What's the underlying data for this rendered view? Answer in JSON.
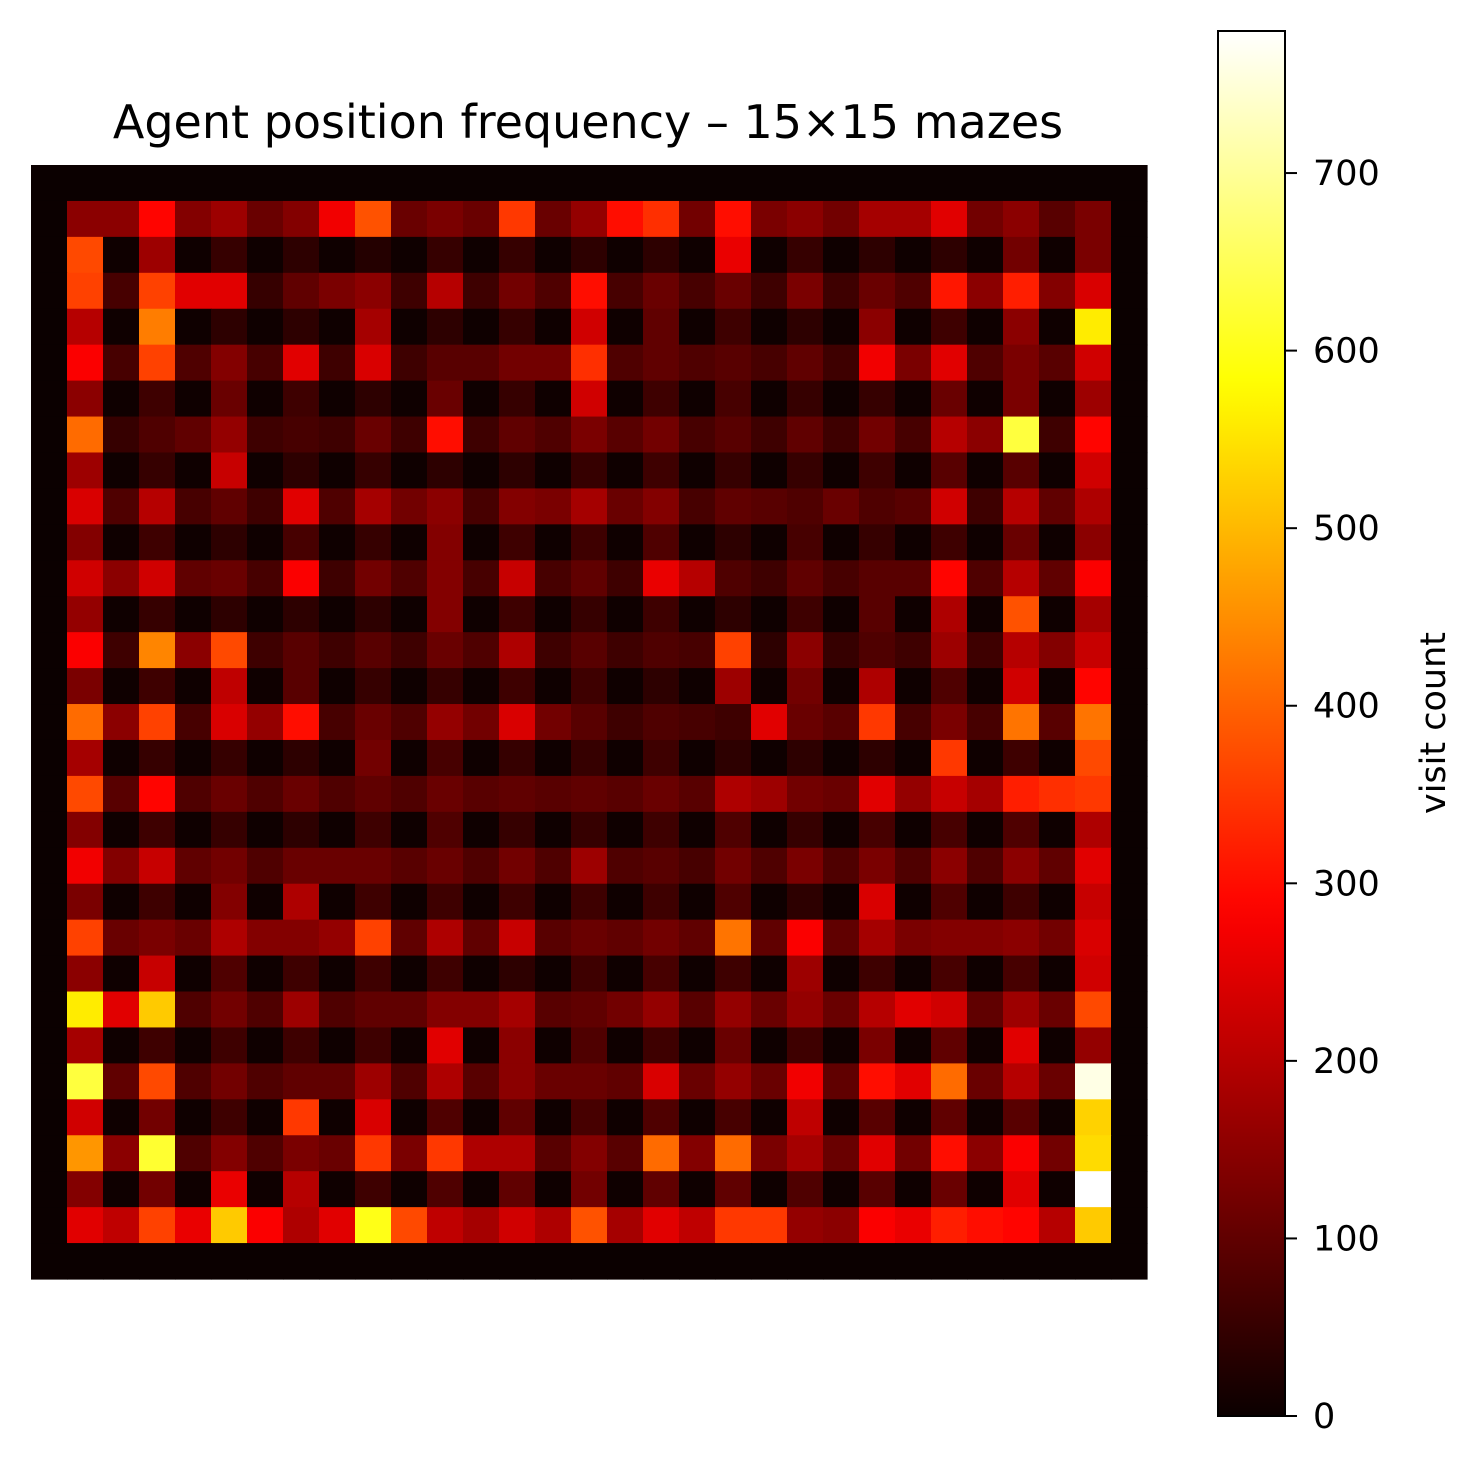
{
  "chart_data": {
    "type": "heatmap",
    "title": "Agent position frequency – 15×15 mazes",
    "colormap": "hot",
    "vmin": 0,
    "vmax": 780,
    "rows": 31,
    "cols": 31,
    "axes_visible": false,
    "colorbar": {
      "label": "visit count",
      "ticks": [
        0,
        100,
        200,
        300,
        400,
        500,
        600,
        700
      ],
      "tick_labels": [
        "0",
        "100",
        "200",
        "300",
        "400",
        "500",
        "600",
        "700"
      ]
    },
    "values": [
      [
        0,
        0,
        0,
        0,
        0,
        0,
        0,
        0,
        0,
        0,
        0,
        0,
        0,
        0,
        0,
        0,
        0,
        0,
        0,
        0,
        0,
        0,
        0,
        0,
        0,
        0,
        0,
        0,
        0,
        0,
        0
      ],
      [
        0,
        150,
        150,
        290,
        140,
        170,
        110,
        140,
        270,
        380,
        110,
        130,
        110,
        350,
        110,
        160,
        300,
        340,
        120,
        300,
        130,
        150,
        120,
        180,
        180,
        250,
        120,
        150,
        90,
        130,
        0
      ],
      [
        0,
        370,
        5,
        170,
        5,
        50,
        5,
        40,
        5,
        30,
        5,
        50,
        5,
        50,
        5,
        40,
        5,
        40,
        5,
        260,
        5,
        50,
        5,
        40,
        5,
        40,
        5,
        120,
        5,
        130,
        0
      ],
      [
        0,
        360,
        70,
        360,
        250,
        250,
        50,
        100,
        130,
        150,
        60,
        200,
        60,
        120,
        80,
        300,
        70,
        110,
        70,
        110,
        60,
        130,
        60,
        110,
        80,
        310,
        150,
        320,
        140,
        240,
        0
      ],
      [
        0,
        200,
        5,
        430,
        5,
        40,
        5,
        40,
        5,
        180,
        5,
        40,
        5,
        50,
        5,
        230,
        5,
        100,
        5,
        60,
        5,
        40,
        5,
        150,
        5,
        60,
        5,
        150,
        5,
        560,
        0
      ],
      [
        0,
        280,
        70,
        360,
        80,
        140,
        70,
        250,
        60,
        240,
        60,
        90,
        90,
        120,
        120,
        340,
        80,
        100,
        80,
        90,
        70,
        100,
        60,
        270,
        130,
        250,
        80,
        130,
        90,
        230,
        0
      ],
      [
        0,
        150,
        5,
        60,
        5,
        110,
        5,
        60,
        5,
        40,
        5,
        110,
        5,
        50,
        5,
        230,
        5,
        60,
        5,
        70,
        5,
        50,
        5,
        50,
        5,
        110,
        5,
        130,
        5,
        170,
        0
      ],
      [
        0,
        410,
        50,
        80,
        100,
        160,
        60,
        70,
        60,
        110,
        60,
        300,
        60,
        100,
        80,
        130,
        90,
        120,
        70,
        90,
        60,
        100,
        60,
        120,
        70,
        200,
        150,
        630,
        60,
        290,
        0
      ],
      [
        0,
        170,
        5,
        50,
        5,
        220,
        5,
        40,
        5,
        50,
        5,
        40,
        5,
        40,
        5,
        50,
        5,
        60,
        5,
        50,
        5,
        50,
        5,
        60,
        5,
        90,
        5,
        90,
        5,
        230,
        0
      ],
      [
        0,
        240,
        80,
        200,
        70,
        100,
        60,
        250,
        80,
        180,
        120,
        150,
        70,
        140,
        130,
        180,
        110,
        140,
        70,
        100,
        90,
        80,
        110,
        80,
        90,
        230,
        60,
        200,
        100,
        190,
        0
      ],
      [
        0,
        140,
        5,
        60,
        5,
        40,
        5,
        70,
        5,
        50,
        5,
        140,
        5,
        60,
        5,
        60,
        5,
        80,
        5,
        40,
        5,
        70,
        5,
        50,
        5,
        60,
        5,
        110,
        5,
        150,
        0
      ],
      [
        0,
        230,
        150,
        230,
        100,
        110,
        70,
        280,
        60,
        120,
        80,
        140,
        70,
        220,
        70,
        100,
        60,
        260,
        200,
        80,
        60,
        100,
        70,
        90,
        90,
        290,
        80,
        200,
        100,
        280,
        0
      ],
      [
        0,
        160,
        5,
        50,
        5,
        40,
        5,
        40,
        5,
        40,
        5,
        140,
        5,
        60,
        5,
        50,
        5,
        60,
        5,
        40,
        5,
        60,
        5,
        90,
        5,
        190,
        5,
        380,
        5,
        180,
        0
      ],
      [
        0,
        280,
        60,
        440,
        150,
        370,
        60,
        90,
        60,
        90,
        60,
        110,
        80,
        190,
        60,
        90,
        60,
        80,
        70,
        360,
        40,
        150,
        50,
        80,
        60,
        170,
        60,
        200,
        140,
        220,
        0
      ],
      [
        0,
        130,
        5,
        60,
        5,
        210,
        5,
        90,
        5,
        50,
        5,
        50,
        5,
        60,
        5,
        60,
        5,
        40,
        5,
        170,
        5,
        120,
        5,
        190,
        5,
        80,
        5,
        230,
        5,
        290,
        0
      ],
      [
        0,
        410,
        150,
        360,
        70,
        240,
        160,
        300,
        70,
        110,
        80,
        160,
        120,
        240,
        120,
        90,
        60,
        80,
        70,
        60,
        250,
        110,
        90,
        350,
        70,
        130,
        70,
        420,
        90,
        420,
        0
      ],
      [
        0,
        180,
        5,
        50,
        5,
        50,
        5,
        40,
        5,
        120,
        5,
        70,
        5,
        50,
        5,
        50,
        5,
        60,
        5,
        40,
        5,
        40,
        5,
        40,
        5,
        350,
        5,
        60,
        5,
        370,
        0
      ],
      [
        0,
        370,
        90,
        290,
        80,
        110,
        80,
        110,
        80,
        100,
        80,
        110,
        90,
        100,
        90,
        100,
        90,
        110,
        90,
        190,
        170,
        120,
        110,
        250,
        160,
        220,
        180,
        320,
        340,
        350,
        0
      ],
      [
        0,
        140,
        5,
        60,
        5,
        50,
        5,
        40,
        5,
        60,
        5,
        80,
        5,
        50,
        5,
        50,
        5,
        60,
        5,
        80,
        5,
        50,
        5,
        70,
        5,
        70,
        5,
        80,
        5,
        190,
        0
      ],
      [
        0,
        270,
        140,
        220,
        100,
        120,
        80,
        110,
        110,
        110,
        90,
        110,
        80,
        120,
        80,
        170,
        80,
        90,
        70,
        120,
        80,
        130,
        80,
        130,
        80,
        150,
        80,
        150,
        100,
        250,
        0
      ],
      [
        0,
        130,
        5,
        60,
        5,
        140,
        5,
        190,
        5,
        60,
        5,
        60,
        5,
        60,
        5,
        60,
        5,
        60,
        5,
        80,
        5,
        40,
        5,
        240,
        5,
        80,
        5,
        60,
        5,
        220,
        0
      ],
      [
        0,
        360,
        110,
        130,
        110,
        190,
        140,
        140,
        160,
        360,
        100,
        190,
        100,
        220,
        90,
        110,
        100,
        120,
        100,
        420,
        100,
        280,
        100,
        180,
        130,
        140,
        140,
        150,
        120,
        240,
        0
      ],
      [
        0,
        150,
        5,
        220,
        5,
        80,
        5,
        60,
        5,
        60,
        5,
        60,
        5,
        40,
        5,
        60,
        5,
        70,
        5,
        60,
        5,
        170,
        5,
        60,
        5,
        70,
        5,
        70,
        5,
        230,
        0
      ],
      [
        0,
        560,
        250,
        520,
        80,
        120,
        80,
        170,
        80,
        100,
        100,
        140,
        140,
        180,
        90,
        100,
        120,
        160,
        90,
        160,
        110,
        160,
        110,
        200,
        250,
        230,
        100,
        170,
        110,
        370,
        0
      ],
      [
        0,
        180,
        5,
        60,
        5,
        60,
        5,
        60,
        5,
        60,
        5,
        250,
        5,
        150,
        5,
        80,
        5,
        60,
        5,
        110,
        5,
        60,
        5,
        130,
        5,
        100,
        5,
        250,
        5,
        160,
        0
      ],
      [
        0,
        630,
        100,
        370,
        80,
        120,
        80,
        100,
        100,
        170,
        80,
        190,
        90,
        150,
        110,
        110,
        100,
        240,
        110,
        160,
        110,
        270,
        100,
        300,
        250,
        410,
        110,
        200,
        110,
        760,
        0
      ],
      [
        0,
        230,
        5,
        120,
        5,
        60,
        5,
        350,
        5,
        240,
        5,
        80,
        5,
        100,
        5,
        70,
        5,
        80,
        5,
        70,
        5,
        210,
        5,
        90,
        5,
        100,
        5,
        90,
        5,
        530,
        0
      ],
      [
        0,
        460,
        150,
        620,
        80,
        140,
        80,
        130,
        110,
        350,
        130,
        350,
        190,
        190,
        90,
        140,
        90,
        410,
        140,
        410,
        130,
        180,
        110,
        250,
        120,
        300,
        150,
        280,
        120,
        540,
        0
      ],
      [
        0,
        140,
        5,
        120,
        5,
        260,
        5,
        200,
        5,
        60,
        5,
        80,
        5,
        100,
        5,
        120,
        5,
        100,
        5,
        100,
        5,
        80,
        5,
        90,
        5,
        110,
        5,
        250,
        5,
        780,
        0
      ],
      [
        0,
        250,
        210,
        360,
        260,
        520,
        280,
        190,
        250,
        600,
        370,
        210,
        180,
        230,
        190,
        380,
        180,
        250,
        210,
        350,
        350,
        160,
        150,
        280,
        260,
        320,
        300,
        290,
        200,
        520,
        0
      ],
      [
        0,
        0,
        0,
        0,
        0,
        0,
        0,
        0,
        0,
        0,
        0,
        0,
        0,
        0,
        0,
        0,
        0,
        0,
        0,
        0,
        0,
        0,
        0,
        0,
        0,
        0,
        0,
        0,
        0,
        0,
        0
      ]
    ]
  }
}
